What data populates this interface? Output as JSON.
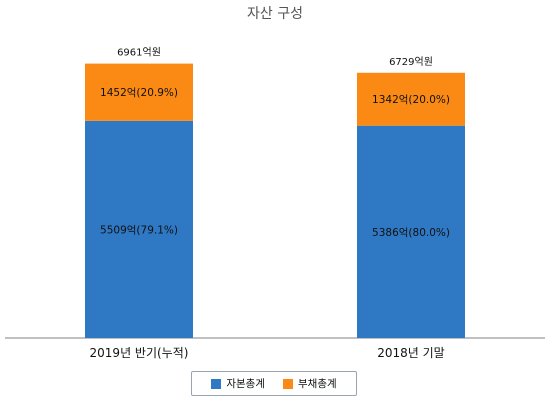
{
  "chart_data": {
    "type": "bar",
    "stacked": true,
    "title": "자산 구성",
    "categories": [
      "2019년 반기(누적)",
      "2018년 기말"
    ],
    "series": [
      {
        "name": "자본총계",
        "values": [
          5509,
          5386
        ],
        "labels": [
          "5509억(79.1%)",
          "5386억(80.0%)"
        ],
        "color": "#2f78c4"
      },
      {
        "name": "부채총계",
        "values": [
          1452,
          1342
        ],
        "labels": [
          "1452억(20.9%)",
          "1342억(20.0%)"
        ],
        "color": "#fb8a14"
      }
    ],
    "totals": [
      6961,
      6729
    ],
    "total_labels": [
      "6961억원",
      "6729억원"
    ],
    "ylim": [
      0,
      7000
    ],
    "grid": false,
    "legend": "bottom"
  }
}
